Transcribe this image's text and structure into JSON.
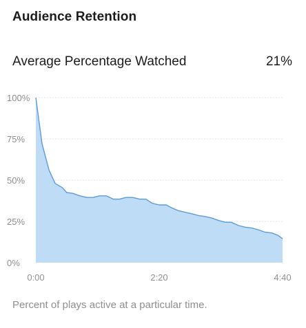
{
  "header": {
    "title": "Audience Retention"
  },
  "metric": {
    "label": "Average Percentage Watched",
    "value": "21%"
  },
  "caption": "Percent of plays active at a particular time.",
  "colors": {
    "fill": "#bfdcf7",
    "line": "#5b9bd9",
    "grid": "#e4e4e4",
    "axis_text": "#8e8e93"
  },
  "chart_data": {
    "type": "area",
    "title": "",
    "xlabel": "",
    "ylabel": "",
    "x_unit": "seconds",
    "xlim": [
      0,
      280
    ],
    "ylim": [
      0,
      100
    ],
    "y_ticks": [
      0,
      25,
      50,
      75,
      100
    ],
    "y_tick_labels": [
      "0%",
      "25%",
      "50%",
      "75%",
      "100%"
    ],
    "x_ticks": [
      0,
      140,
      280
    ],
    "x_tick_labels": [
      "0:00",
      "2:20",
      "4:40"
    ],
    "grid": true,
    "series": [
      {
        "x": [
          0,
          7,
          15,
          22,
          30,
          35,
          42,
          50,
          58,
          65,
          72,
          80,
          88,
          95,
          102,
          110,
          118,
          125,
          132,
          140,
          148,
          155,
          162,
          170,
          178,
          185,
          192,
          200,
          208,
          215,
          222,
          230,
          238,
          245,
          252,
          260,
          268,
          275,
          280
        ],
        "values": [
          100,
          72,
          56,
          48,
          45.5,
          42.5,
          42,
          40.5,
          39.5,
          39.5,
          40.5,
          40.5,
          38.5,
          38.5,
          39.5,
          39.5,
          38.5,
          38.5,
          36,
          35,
          35,
          33,
          31.5,
          30.5,
          29.5,
          28.5,
          28,
          27,
          25.5,
          24.5,
          24.5,
          22.5,
          21.5,
          21,
          20,
          18.5,
          18,
          16.5,
          14.5
        ]
      }
    ]
  }
}
